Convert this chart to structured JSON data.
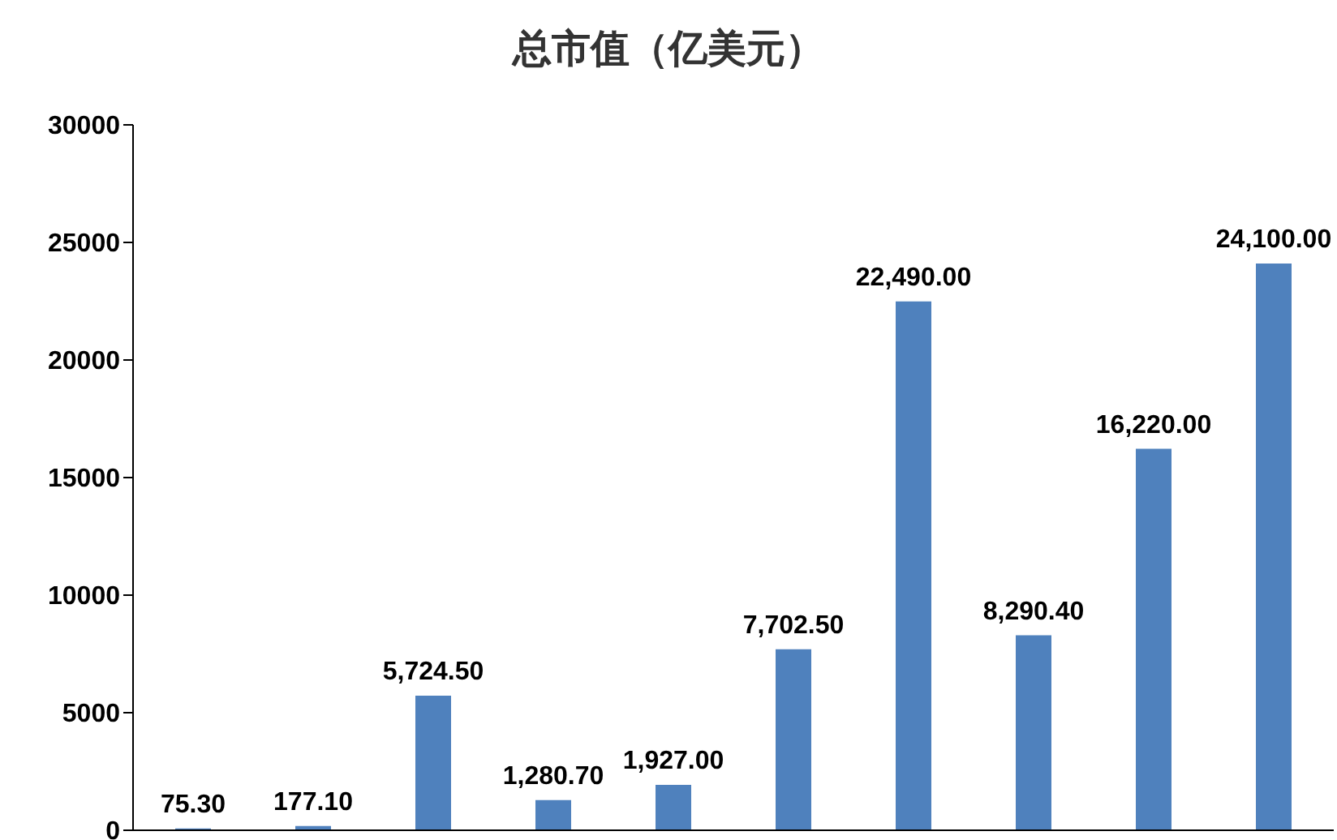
{
  "chart_data": {
    "type": "bar",
    "title": "总市值（亿美元）",
    "categories": [
      null,
      null,
      null,
      null,
      null,
      null,
      null,
      null,
      null,
      null
    ],
    "values": [
      75.3,
      177.1,
      5724.5,
      1280.7,
      1927,
      7702.5,
      22490,
      8290.4,
      16220,
      24100
    ],
    "value_labels": [
      "75.30",
      "177.10",
      "5,724.50",
      "1,280.70",
      "1,927.00",
      "7,702.50",
      "22,490.00",
      "8,290.40",
      "16,220.00",
      "24,100.00"
    ],
    "color": "#4f81bd",
    "ylim": [
      0,
      30000
    ],
    "yticks": [
      0,
      5000,
      10000,
      15000,
      20000,
      25000,
      30000
    ],
    "grid": false
  }
}
